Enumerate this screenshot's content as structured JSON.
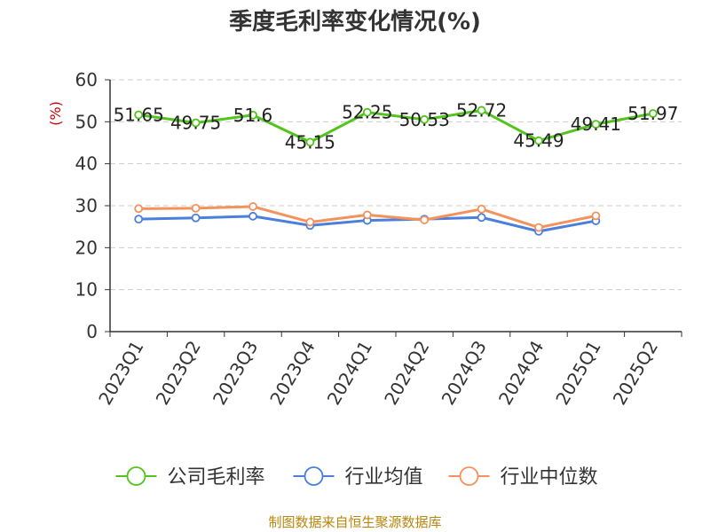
{
  "chart_data": {
    "type": "line",
    "title": "季度毛利率变化情况(%)",
    "ylabel": "(%)",
    "xlabel": "",
    "ylim": [
      0,
      60
    ],
    "yticks": [
      0,
      10,
      20,
      30,
      40,
      50,
      60
    ],
    "grid": true,
    "legend_position": "bottom",
    "categories": [
      "2023Q1",
      "2023Q2",
      "2023Q3",
      "2023Q4",
      "2024Q1",
      "2024Q2",
      "2024Q3",
      "2024Q4",
      "2025Q1",
      "2025Q2"
    ],
    "series": [
      {
        "name": "公司毛利率",
        "color": "#52c41a",
        "values": [
          51.65,
          49.75,
          51.6,
          45.15,
          52.25,
          50.53,
          52.72,
          45.49,
          49.41,
          51.97
        ],
        "labels": [
          "51.65",
          "49.75",
          "51.6",
          "45.15",
          "52.25",
          "50.53",
          "52.72",
          "45.49",
          "49.41",
          "51.97"
        ]
      },
      {
        "name": "行业均值",
        "color": "#4a7fdc",
        "values": [
          26.8,
          27.1,
          27.5,
          25.3,
          26.5,
          26.8,
          27.2,
          23.9,
          26.4,
          null
        ]
      },
      {
        "name": "行业中位数",
        "color": "#f4925c",
        "values": [
          29.3,
          29.4,
          29.8,
          26.1,
          27.8,
          26.6,
          29.2,
          24.8,
          27.6,
          null
        ]
      }
    ]
  },
  "source_text": "制图数据来自恒生聚源数据库"
}
